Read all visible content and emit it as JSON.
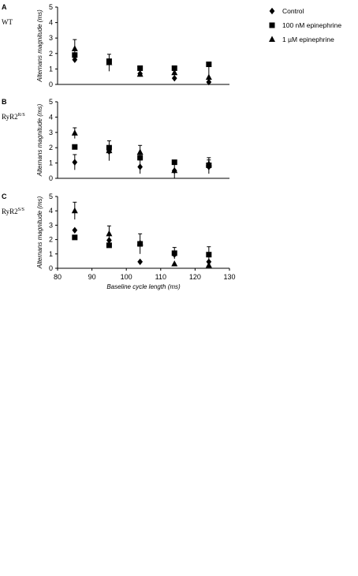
{
  "legend": [
    {
      "name": "Control",
      "marker": "diamond"
    },
    {
      "name": "100 nM epinephrine",
      "marker": "square"
    },
    {
      "name": "1 µM epinephrine",
      "marker": "triangle"
    }
  ],
  "chart_data": [
    {
      "panel": "A",
      "genotype": {
        "base": "WT",
        "sup": ""
      },
      "type": "scatter",
      "ylabel": "Alternans magnitude (ms)",
      "ylim": [
        0,
        5
      ],
      "yticks": [
        0,
        1,
        2,
        3,
        4,
        5
      ],
      "xlim": [
        80,
        130
      ],
      "series": [
        {
          "name": "Control",
          "marker": "diamond",
          "points": [
            {
              "x": 85,
              "y": 1.6,
              "err": 0
            },
            {
              "x": 95,
              "y": 1.5,
              "err": 0
            },
            {
              "x": 104,
              "y": 0.7,
              "err": 0
            },
            {
              "x": 114,
              "y": 0.4,
              "err": 0
            },
            {
              "x": 124,
              "y": 0.15,
              "err": 0
            }
          ]
        },
        {
          "name": "100 nM epinephrine",
          "marker": "square",
          "points": [
            {
              "x": 85,
              "y": 1.9,
              "err": 0
            },
            {
              "x": 95,
              "y": 1.5,
              "err": 0
            },
            {
              "x": 104,
              "y": 1.05,
              "err": 0
            },
            {
              "x": 114,
              "y": 1.05,
              "err": 0
            },
            {
              "x": 124,
              "y": 1.3,
              "err": 0
            }
          ]
        },
        {
          "name": "1 µM epinephrine",
          "marker": "triangle",
          "points": [
            {
              "x": 85,
              "y": 2.3,
              "err": 0.6
            },
            {
              "x": 95,
              "y": 1.4,
              "err": 0.55
            },
            {
              "x": 104,
              "y": 0.65,
              "err": 0
            },
            {
              "x": 114,
              "y": 0.75,
              "err": 0.25
            },
            {
              "x": 124,
              "y": 0.45,
              "err": 0.85
            }
          ]
        }
      ]
    },
    {
      "panel": "B",
      "genotype": {
        "base": "RyR2",
        "sup": "R/S"
      },
      "type": "scatter",
      "ylabel": "Alternans magnitude (ms)",
      "ylim": [
        0,
        5
      ],
      "yticks": [
        0,
        1,
        2,
        3,
        4,
        5
      ],
      "xlim": [
        80,
        130
      ],
      "series": [
        {
          "name": "Control",
          "marker": "diamond",
          "points": [
            {
              "x": 85,
              "y": 1.05,
              "err": 0.5
            },
            {
              "x": 95,
              "y": 1.75,
              "err": 0
            },
            {
              "x": 104,
              "y": 0.75,
              "err": 0.45
            },
            {
              "x": 114,
              "y": 0.5,
              "err": 0
            },
            {
              "x": 124,
              "y": 0.75,
              "err": 0.45
            }
          ]
        },
        {
          "name": "100 nM epinephrine",
          "marker": "square",
          "points": [
            {
              "x": 85,
              "y": 2.05,
              "err": 0
            },
            {
              "x": 95,
              "y": 2.0,
              "err": 0
            },
            {
              "x": 104,
              "y": 1.35,
              "err": 0
            },
            {
              "x": 114,
              "y": 1.05,
              "err": 0
            },
            {
              "x": 124,
              "y": 0.85,
              "err": 0
            }
          ]
        },
        {
          "name": "1 µM epinephrine",
          "marker": "triangle",
          "points": [
            {
              "x": 85,
              "y": 2.95,
              "err": 0.35
            },
            {
              "x": 95,
              "y": 1.8,
              "err": 0.65
            },
            {
              "x": 104,
              "y": 1.7,
              "err": 0.45
            },
            {
              "x": 114,
              "y": 0.5,
              "err": 0.5
            },
            {
              "x": 124,
              "y": 0.95,
              "err": 0.4
            }
          ]
        }
      ]
    },
    {
      "panel": "C",
      "genotype": {
        "base": "RyR2",
        "sup": "S/S"
      },
      "type": "scatter",
      "ylabel": "Alternans magnitude (ms)",
      "xlabel": "Baseline cycle length (ms)",
      "ylim": [
        0,
        5
      ],
      "yticks": [
        0,
        1,
        2,
        3,
        4,
        5
      ],
      "xlim": [
        80,
        130
      ],
      "xticks": [
        80,
        90,
        100,
        110,
        120,
        130
      ],
      "series": [
        {
          "name": "Control",
          "marker": "diamond",
          "points": [
            {
              "x": 85,
              "y": 2.65,
              "err": 0
            },
            {
              "x": 95,
              "y": 1.95,
              "err": 0
            },
            {
              "x": 104,
              "y": 0.45,
              "err": 0
            },
            {
              "x": 114,
              "y": 0.95,
              "err": 0
            },
            {
              "x": 124,
              "y": 0.45,
              "err": 0
            }
          ]
        },
        {
          "name": "100 nM epinephrine",
          "marker": "square",
          "points": [
            {
              "x": 85,
              "y": 2.15,
              "err": 0
            },
            {
              "x": 95,
              "y": 1.6,
              "err": 0
            },
            {
              "x": 104,
              "y": 1.7,
              "err": 0.7
            },
            {
              "x": 114,
              "y": 1.05,
              "err": 0.4
            },
            {
              "x": 124,
              "y": 0.95,
              "err": 0.55
            }
          ]
        },
        {
          "name": "1 µM epinephrine",
          "marker": "triangle",
          "points": [
            {
              "x": 85,
              "y": 4.0,
              "err": 0.6
            },
            {
              "x": 95,
              "y": 2.4,
              "err": 0.55
            },
            {
              "x": 104,
              "y": 1.75,
              "err": 0
            },
            {
              "x": 114,
              "y": 0.3,
              "err": 0
            },
            {
              "x": 124,
              "y": 0.2,
              "err": 0
            }
          ]
        }
      ]
    }
  ]
}
